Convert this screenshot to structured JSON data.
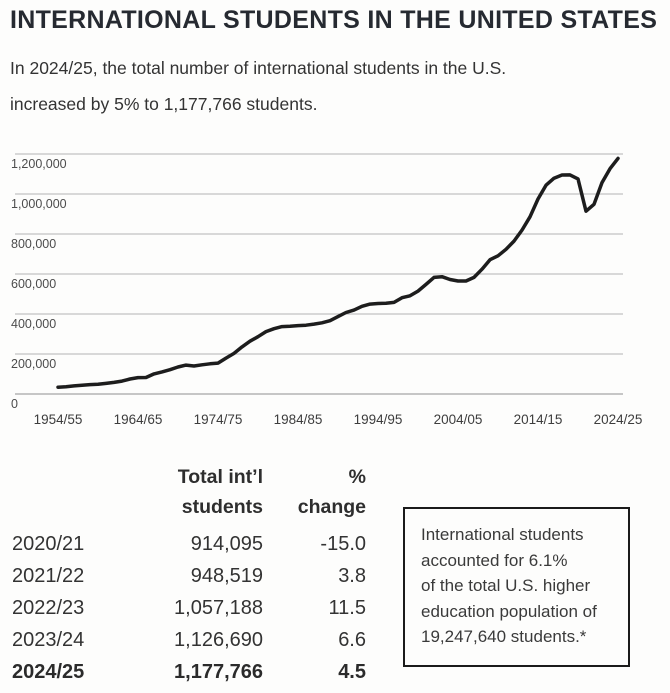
{
  "header": {
    "title": "INTERNATIONAL STUDENTS IN THE UNITED STATES",
    "subtitle": "In 2024/25, the total number of international students in the U.S.\nincreased by 5% to 1,177,766 students."
  },
  "chart_data": {
    "type": "line",
    "title": "",
    "xlabel": "",
    "ylabel": "",
    "x_start_year": 1954,
    "x_step": 1,
    "x_label_format": "startYear/endYY",
    "series": [
      {
        "name": "Total international students in the U.S.",
        "values": [
          34232,
          36494,
          40666,
          43391,
          47245,
          48486,
          53107,
          58086,
          64705,
          74814,
          82045,
          82709,
          100262,
          110315,
          121362,
          134959,
          144708,
          140126,
          146097,
          151066,
          154580,
          179344,
          203068,
          235509,
          263938,
          286343,
          311882,
          326299,
          336985,
          338894,
          342113,
          343777,
          349609,
          356187,
          366354,
          386851,
          407529,
          419585,
          438618,
          449749,
          452635,
          453787,
          457984,
          481280,
          490933,
          514723,
          547867,
          582996,
          586323,
          572509,
          565039,
          564766,
          582984,
          623805,
          671616,
          690923,
          723277,
          764495,
          819644,
          886052,
          974926,
          1043839,
          1078822,
          1094792,
          1095299,
          1075496,
          914095,
          948519,
          1057188,
          1126690,
          1177766
        ]
      }
    ],
    "ylim": [
      0,
      1200000
    ],
    "yticks": [
      {
        "value": 0,
        "label": "0"
      },
      {
        "value": 200000,
        "label": "200,000"
      },
      {
        "value": 400000,
        "label": "400,000"
      },
      {
        "value": 600000,
        "label": "600,000"
      },
      {
        "value": 800000,
        "label": "800,000"
      },
      {
        "value": 1000000,
        "label": "1,000,000"
      },
      {
        "value": 1200000,
        "label": "1,200,000"
      }
    ],
    "xticks": [
      {
        "year": 1954,
        "label": "1954/55"
      },
      {
        "year": 1964,
        "label": "1964/65"
      },
      {
        "year": 1974,
        "label": "1974/75"
      },
      {
        "year": 1984,
        "label": "1984/85"
      },
      {
        "year": 1994,
        "label": "1994/95"
      },
      {
        "year": 2004,
        "label": "2004/05"
      },
      {
        "year": 2014,
        "label": "2014/15"
      },
      {
        "year": 2024,
        "label": "2024/25"
      }
    ],
    "grid": "horizontal",
    "legend": "none"
  },
  "table": {
    "header": {
      "col1": "",
      "col2": "Total int’l\nstudents",
      "col3": "%\nchange"
    },
    "rows": [
      {
        "year": "2020/21",
        "total": "914,095",
        "change": "-15.0"
      },
      {
        "year": "2021/22",
        "total": "948,519",
        "change": "3.8"
      },
      {
        "year": "2022/23",
        "total": "1,057,188",
        "change": "11.5"
      },
      {
        "year": "2023/24",
        "total": "1,126,690",
        "change": "6.6"
      },
      {
        "year": "2024/25",
        "total": "1,177,766",
        "change": "4.5"
      }
    ]
  },
  "callout": {
    "text": "International students\naccounted for 6.1%\nof the total U.S. higher\neducation population of\n19,247,640 students.*"
  },
  "colors": {
    "title_text": "#262a31",
    "body_text": "#333333",
    "series_line": "#1d1d1d",
    "gridline": "#b3b3b3",
    "box_border": "#1b1b1b"
  }
}
